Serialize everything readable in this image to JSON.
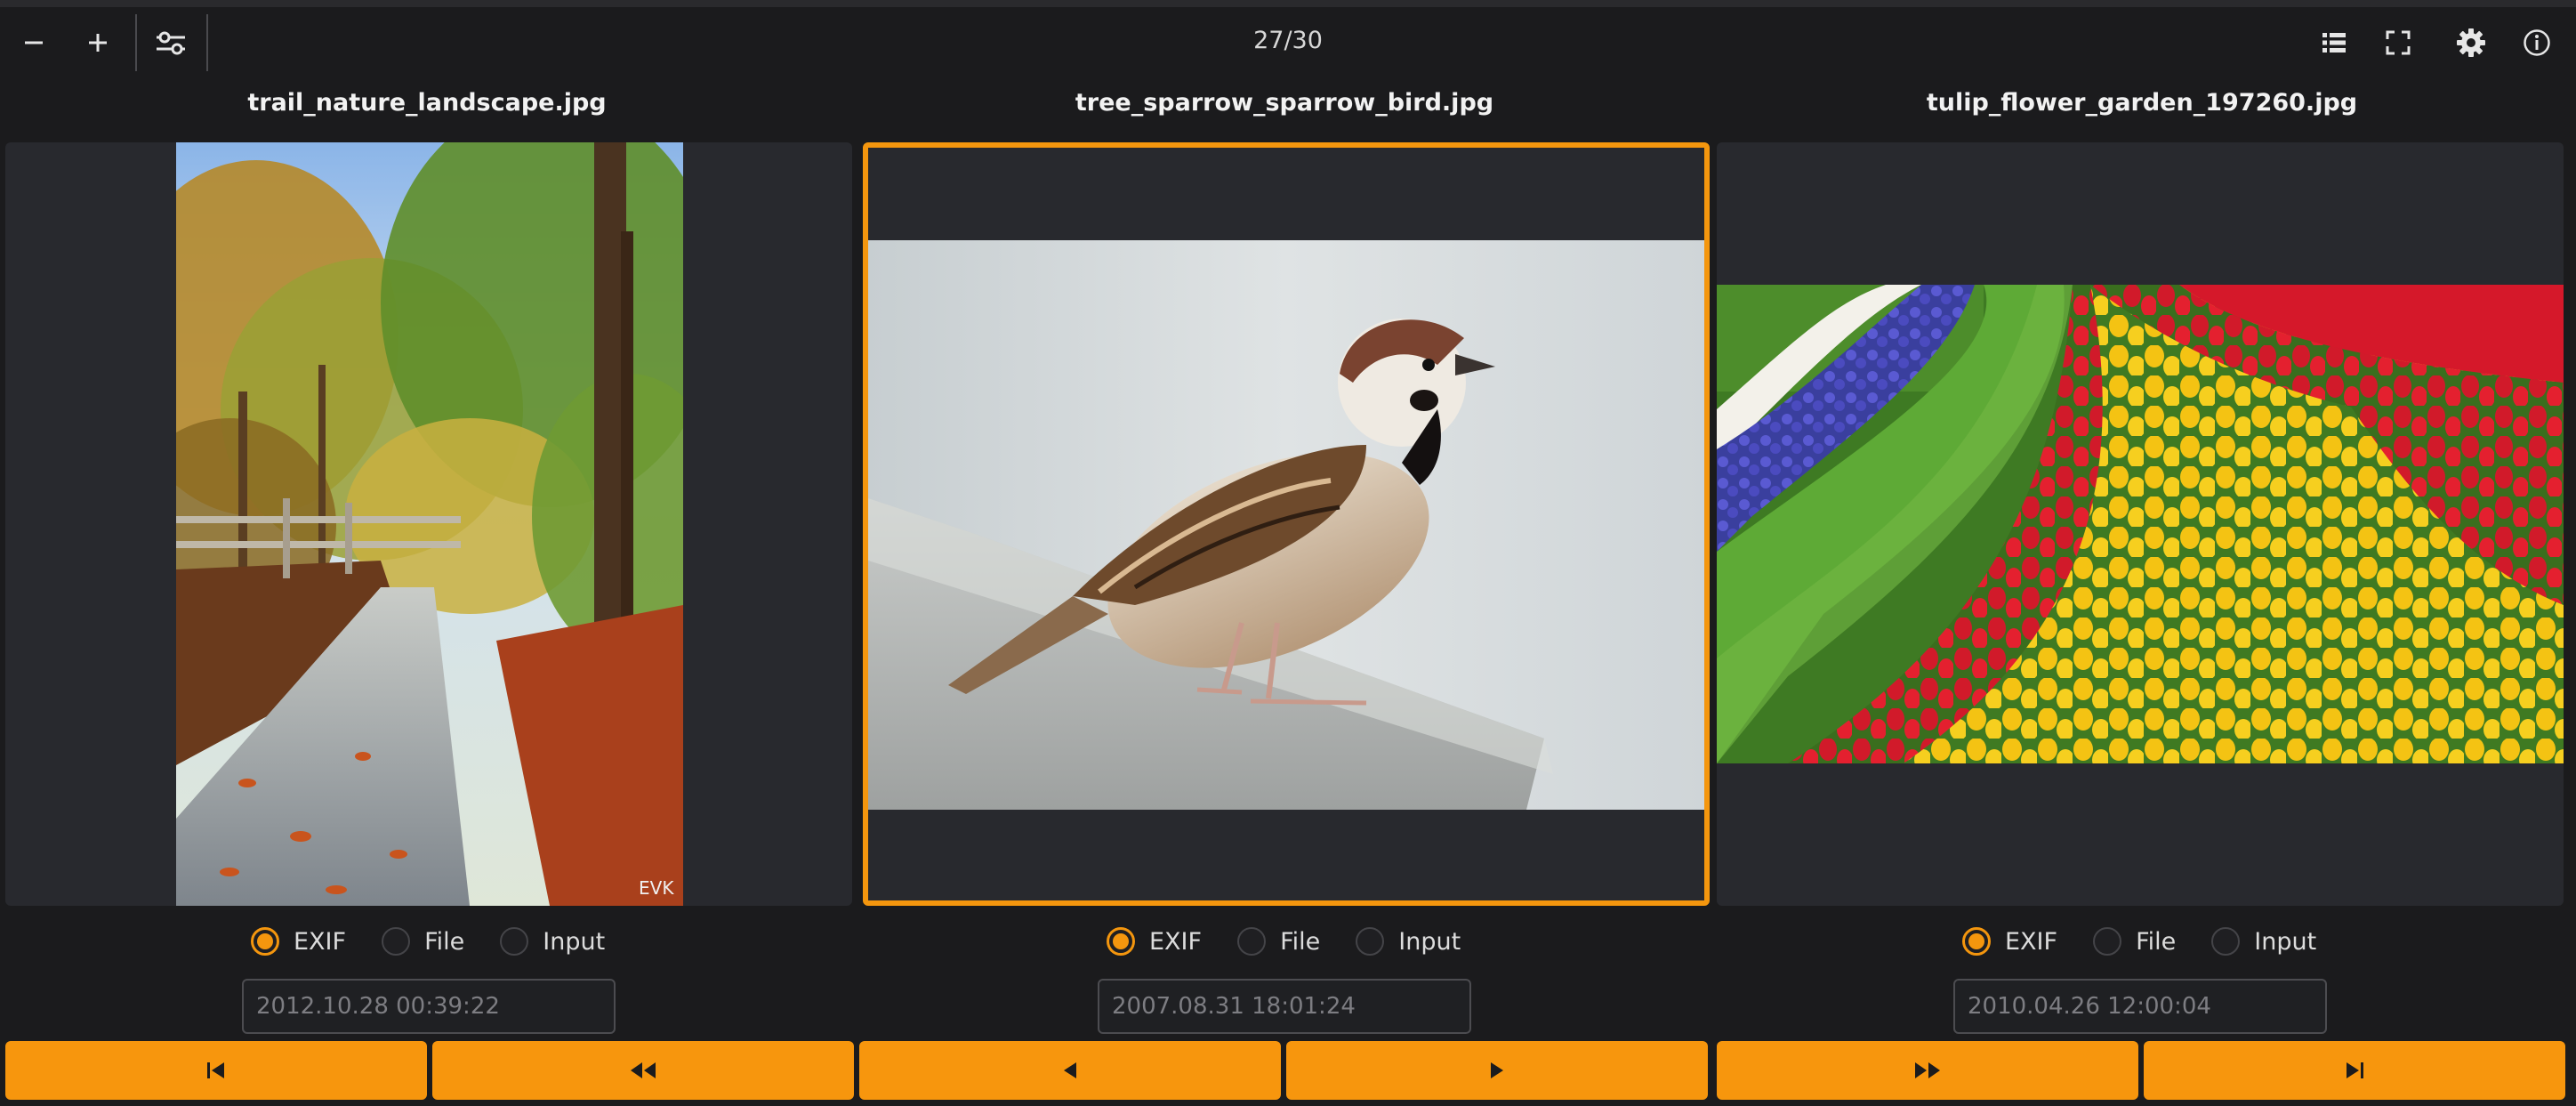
{
  "toolbar": {
    "counter": "27/30",
    "icons": [
      "minus-icon",
      "plus-icon",
      "sliders-icon",
      "list-icon",
      "fullscreen-icon",
      "gear-icon",
      "info-icon"
    ]
  },
  "panels": [
    {
      "filename": "trail_nature_landscape.jpg",
      "photo": "autumn forest trail with fallen leaves and wooden fence",
      "watermark": "EVK",
      "radios": [
        {
          "label": "EXIF",
          "checked": true
        },
        {
          "label": "File",
          "checked": false
        },
        {
          "label": "Input",
          "checked": false
        }
      ],
      "date_value": "2012.10.28 00:39:22"
    },
    {
      "filename": "tree_sparrow_sparrow_bird.jpg",
      "photo": "tree sparrow perched on a stone ledge",
      "selected": true,
      "radios": [
        {
          "label": "EXIF",
          "checked": true
        },
        {
          "label": "File",
          "checked": false
        },
        {
          "label": "Input",
          "checked": false
        }
      ],
      "date_value": "2007.08.31 18:01:24"
    },
    {
      "filename": "tulip_flower_garden_197260.jpg",
      "photo": "curving rows of red and yellow tulips and purple hyacinths",
      "radios": [
        {
          "label": "EXIF",
          "checked": true
        },
        {
          "label": "File",
          "checked": false
        },
        {
          "label": "Input",
          "checked": false
        }
      ],
      "date_value": "2010.04.26 12:00:04"
    }
  ],
  "nav": [
    "first-icon",
    "rewind-icon",
    "previous-icon",
    "next-icon",
    "fast-forward-icon",
    "last-icon"
  ],
  "colors": {
    "accent": "#f7960d",
    "background": "#1b1b1d",
    "panel": "#28292e"
  }
}
